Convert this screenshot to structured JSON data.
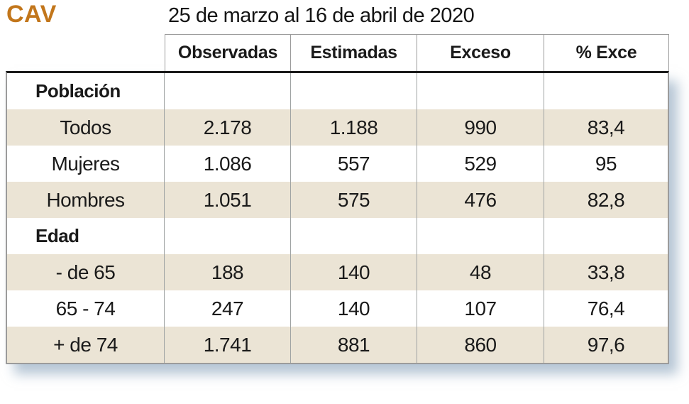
{
  "header": {
    "logo": "CAV",
    "title": "25 de marzo al 16 de abril de 2020"
  },
  "table": {
    "columns": [
      "Observadas",
      "Estimadas",
      "Exceso",
      "% Exce"
    ],
    "rows": [
      {
        "label": "Población",
        "values": [
          "",
          "",
          "",
          ""
        ]
      },
      {
        "label": "Todos",
        "values": [
          "2.178",
          "1.188",
          "990",
          "83,4"
        ]
      },
      {
        "label": "Mujeres",
        "values": [
          "1.086",
          "557",
          "529",
          "95"
        ]
      },
      {
        "label": "Hombres",
        "values": [
          "1.051",
          "575",
          "476",
          "82,8"
        ]
      },
      {
        "label": "Edad",
        "values": [
          "",
          "",
          "",
          ""
        ]
      },
      {
        "label": "- de 65",
        "values": [
          "188",
          "140",
          "48",
          "33,8"
        ]
      },
      {
        "label": "65 - 74",
        "values": [
          "247",
          "140",
          "107",
          "76,4"
        ]
      },
      {
        "label": "+ de 74",
        "values": [
          "1.741",
          "881",
          "860",
          "97,6"
        ]
      }
    ]
  },
  "colors": {
    "logo_orange": "#C2761B",
    "shaded_row_beige": "#EBE4D5",
    "grid_line_gray": "#9B9B9B",
    "heavy_rule_black": "#1A1A1A",
    "shadow_blue_gray": "#C2CFDA"
  },
  "chart_data": {
    "type": "table",
    "region": "CAV",
    "title": "25 de marzo al 16 de abril de 2020",
    "columns": [
      "Observadas",
      "Estimadas",
      "Exceso",
      "% Exce"
    ],
    "sections": [
      {
        "name": "Población",
        "rows": [
          {
            "label": "Todos",
            "observadas": 2178,
            "estimadas": 1188,
            "exceso": 990,
            "pct_exceso": 83.4
          },
          {
            "label": "Mujeres",
            "observadas": 1086,
            "estimadas": 557,
            "exceso": 529,
            "pct_exceso": 95
          },
          {
            "label": "Hombres",
            "observadas": 1051,
            "estimadas": 575,
            "exceso": 476,
            "pct_exceso": 82.8
          }
        ]
      },
      {
        "name": "Edad",
        "rows": [
          {
            "label": "- de 65",
            "observadas": 188,
            "estimadas": 140,
            "exceso": 48,
            "pct_exceso": 33.8
          },
          {
            "label": "65 - 74",
            "observadas": 247,
            "estimadas": 140,
            "exceso": 107,
            "pct_exceso": 76.4
          },
          {
            "label": "+ de 74",
            "observadas": 1741,
            "estimadas": 881,
            "exceso": 860,
            "pct_exceso": 97.6
          }
        ]
      }
    ]
  }
}
